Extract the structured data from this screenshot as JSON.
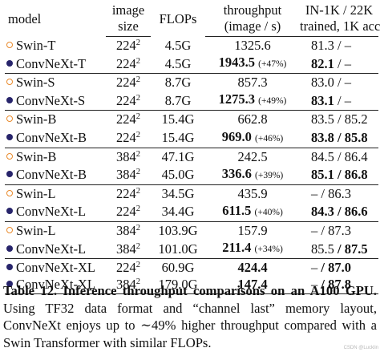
{
  "header": {
    "model": "model",
    "size_line1": "image",
    "size_line2": "size",
    "flops": "FLOPs",
    "throughput_line1": "throughput",
    "throughput_line2": "(image / s)",
    "acc_line1": "IN-1K / 22K",
    "acc_line2": "trained, 1K acc."
  },
  "rows": [
    {
      "marker": "hollow",
      "model": "Swin-T",
      "size": "224",
      "exp": "2",
      "flops": "4.5G",
      "tp": "1325.6",
      "tp_bold": false,
      "tp_gain": "",
      "acc1k": "81.3",
      "acc1k_bold": false,
      "sep": "/",
      "acc22k": "–",
      "acc22k_bold": false,
      "sep_top": false
    },
    {
      "marker": "filled",
      "model": "ConvNeXt-T",
      "size": "224",
      "exp": "2",
      "flops": "4.5G",
      "tp": "1943.5",
      "tp_bold": true,
      "tp_gain": "(+47%)",
      "acc1k": "82.1",
      "acc1k_bold": true,
      "sep": "/",
      "acc22k": "–",
      "acc22k_bold": false,
      "sep_top": false
    },
    {
      "marker": "hollow",
      "model": "Swin-S",
      "size": "224",
      "exp": "2",
      "flops": "8.7G",
      "tp": "857.3",
      "tp_bold": false,
      "tp_gain": "",
      "acc1k": "83.0",
      "acc1k_bold": false,
      "sep": "/",
      "acc22k": "–",
      "acc22k_bold": false,
      "sep_top": true
    },
    {
      "marker": "filled",
      "model": "ConvNeXt-S",
      "size": "224",
      "exp": "2",
      "flops": "8.7G",
      "tp": "1275.3",
      "tp_bold": true,
      "tp_gain": "(+49%)",
      "acc1k": "83.1",
      "acc1k_bold": true,
      "sep": "/",
      "acc22k": "–",
      "acc22k_bold": false,
      "sep_top": false
    },
    {
      "marker": "hollow",
      "model": "Swin-B",
      "size": "224",
      "exp": "2",
      "flops": "15.4G",
      "tp": "662.8",
      "tp_bold": false,
      "tp_gain": "",
      "acc1k": "83.5",
      "acc1k_bold": false,
      "sep": "/",
      "acc22k": "85.2",
      "acc22k_bold": false,
      "sep_top": true
    },
    {
      "marker": "filled",
      "model": "ConvNeXt-B",
      "size": "224",
      "exp": "2",
      "flops": "15.4G",
      "tp": "969.0",
      "tp_bold": true,
      "tp_gain": "(+46%)",
      "acc1k": "83.8",
      "acc1k_bold": true,
      "sep": "/",
      "acc22k": "85.8",
      "acc22k_bold": true,
      "sep_top": false
    },
    {
      "marker": "hollow",
      "model": "Swin-B",
      "size": "384",
      "exp": "2",
      "flops": "47.1G",
      "tp": "242.5",
      "tp_bold": false,
      "tp_gain": "",
      "acc1k": "84.5",
      "acc1k_bold": false,
      "sep": "/",
      "acc22k": "86.4",
      "acc22k_bold": false,
      "sep_top": true
    },
    {
      "marker": "filled",
      "model": "ConvNeXt-B",
      "size": "384",
      "exp": "2",
      "flops": "45.0G",
      "tp": "336.6",
      "tp_bold": true,
      "tp_gain": "(+39%)",
      "acc1k": "85.1",
      "acc1k_bold": true,
      "sep": "/",
      "acc22k": "86.8",
      "acc22k_bold": true,
      "sep_top": false
    },
    {
      "marker": "hollow",
      "model": "Swin-L",
      "size": "224",
      "exp": "2",
      "flops": "34.5G",
      "tp": "435.9",
      "tp_bold": false,
      "tp_gain": "",
      "acc1k": "–",
      "acc1k_bold": false,
      "sep": "/",
      "acc22k": "86.3",
      "acc22k_bold": false,
      "sep_top": true
    },
    {
      "marker": "filled",
      "model": "ConvNeXt-L",
      "size": "224",
      "exp": "2",
      "flops": "34.4G",
      "tp": "611.5",
      "tp_bold": true,
      "tp_gain": "(+40%)",
      "acc1k": "84.3",
      "acc1k_bold": true,
      "sep": "/",
      "acc22k": "86.6",
      "acc22k_bold": true,
      "sep_top": false
    },
    {
      "marker": "hollow",
      "model": "Swin-L",
      "size": "384",
      "exp": "2",
      "flops": "103.9G",
      "tp": "157.9",
      "tp_bold": false,
      "tp_gain": "",
      "acc1k": "–",
      "acc1k_bold": false,
      "sep": "/",
      "acc22k": "87.3",
      "acc22k_bold": false,
      "sep_top": true
    },
    {
      "marker": "filled",
      "model": "ConvNeXt-L",
      "size": "384",
      "exp": "2",
      "flops": "101.0G",
      "tp": "211.4",
      "tp_bold": true,
      "tp_gain": "(+34%)",
      "acc1k": "85.5",
      "acc1k_bold": false,
      "sep": "/",
      "acc22k": "87.5",
      "acc22k_bold": true,
      "sep_top": false
    },
    {
      "marker": "filled",
      "model": "ConvNeXt-XL",
      "size": "224",
      "exp": "2",
      "flops": "60.9G",
      "tp": "424.4",
      "tp_bold": true,
      "tp_gain": "",
      "acc1k": "–",
      "acc1k_bold": false,
      "sep": "/",
      "acc22k": "87.0",
      "acc22k_bold": true,
      "sep_top": true
    },
    {
      "marker": "filled",
      "model": "ConvNeXt-XL",
      "size": "384",
      "exp": "2",
      "flops": "179.0G",
      "tp": "147.4",
      "tp_bold": true,
      "tp_gain": "",
      "acc1k": "–",
      "acc1k_bold": false,
      "sep": "/",
      "acc22k": "87.8",
      "acc22k_bold": true,
      "sep_top": false
    }
  ],
  "caption": {
    "label": "Table 12.",
    "title": "Inference throughput comparisons on an A100 GPU.",
    "body": "Using TF32 data format and “channel last” memory layout, ConvNeXt enjoys up to ∼49% higher throughput compared with a Swin Transformer with similar FLOPs."
  },
  "watermark": "CSDN @Lucklin",
  "colors": {
    "swin_marker": "#e98a2c",
    "convnext_marker": "#27246b"
  }
}
